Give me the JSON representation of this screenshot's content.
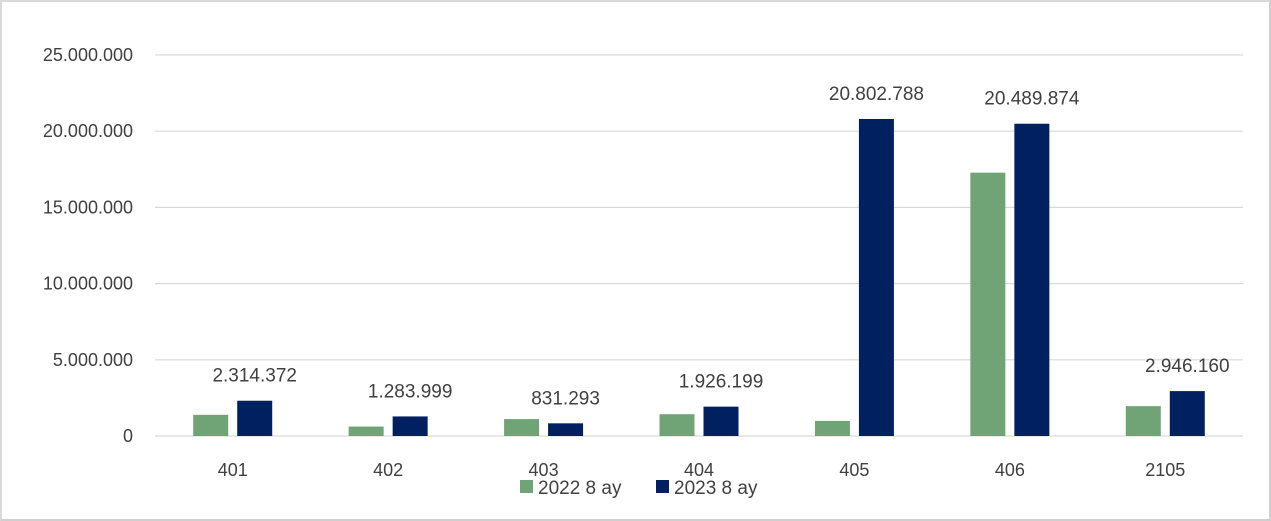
{
  "chart_data": {
    "type": "bar",
    "categories": [
      "401",
      "402",
      "403",
      "404",
      "405",
      "406",
      "2105"
    ],
    "series": [
      {
        "name": "2022 8 ay",
        "color": "#70a476",
        "values": [
          1390000,
          620000,
          1110000,
          1430000,
          990000,
          17280000,
          1960000
        ]
      },
      {
        "name": "2023 8 ay",
        "color": "#002060",
        "values": [
          2314372,
          1283999,
          831293,
          1926199,
          20802788,
          20489874,
          2946160
        ],
        "data_labels": [
          "2.314.372",
          "1.283.999",
          "831.293",
          "1.926.199",
          "20.802.788",
          "20.489.874",
          "2.946.160"
        ]
      }
    ],
    "y_ticks": [
      "0",
      "5.000.000",
      "10.000.000",
      "15.000.000",
      "20.000.000",
      "25.000.000"
    ],
    "ylim": [
      0,
      25000000
    ],
    "grid": true,
    "legend_position": "bottom",
    "colors": {
      "grid": "#d9d9d9",
      "text": "#404040"
    }
  }
}
